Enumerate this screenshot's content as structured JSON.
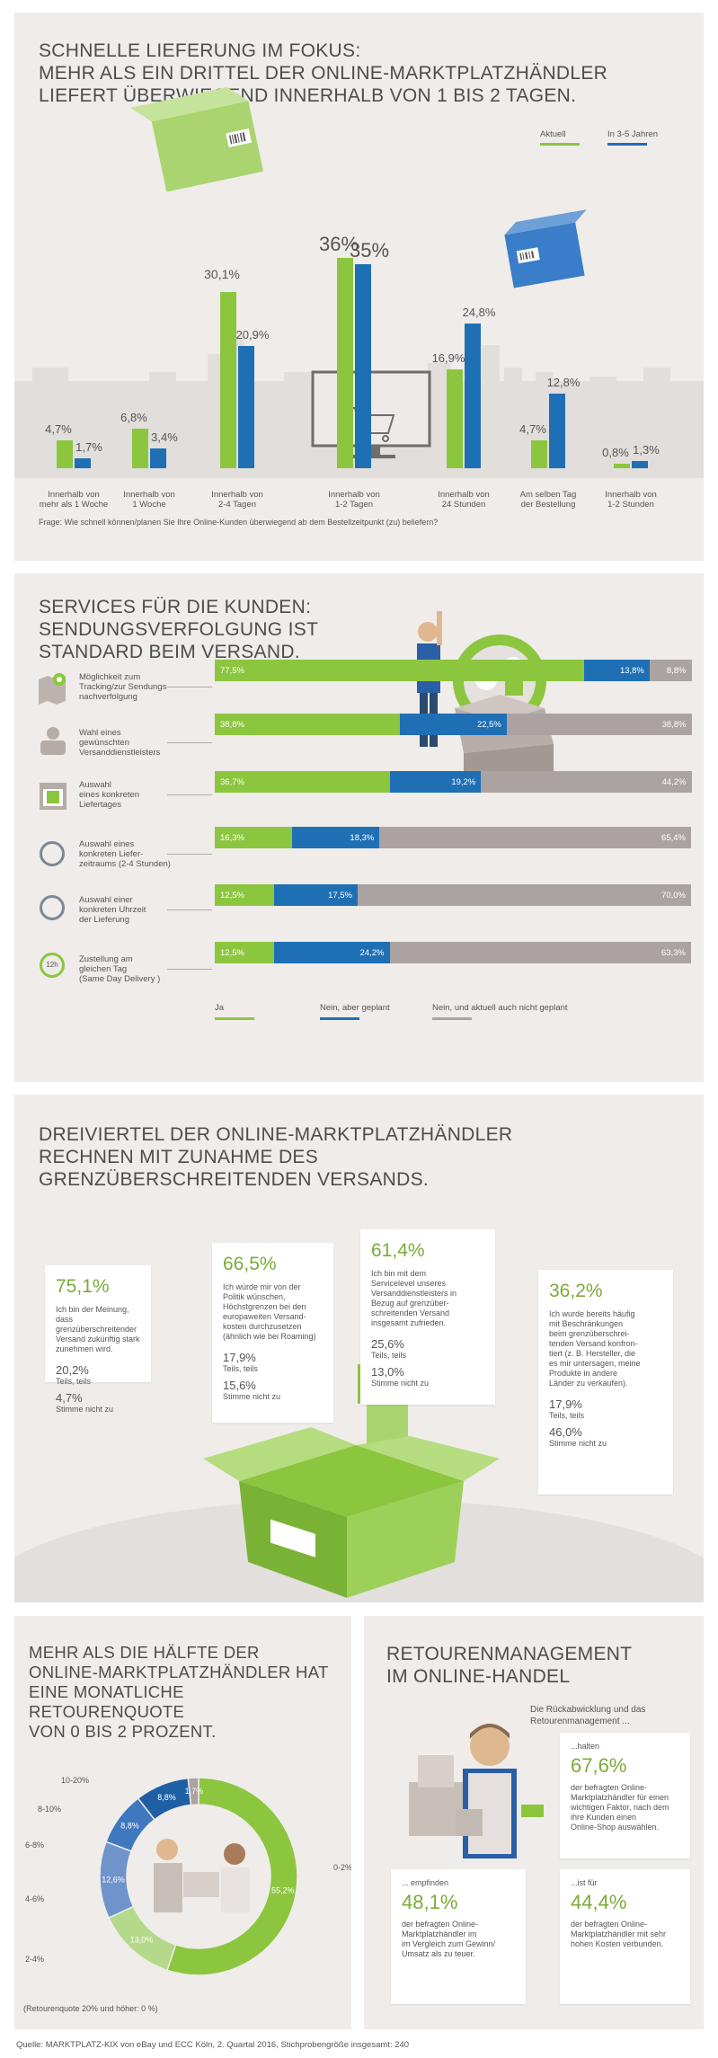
{
  "section1": {
    "title_lines": [
      "SCHNELLE LIEFERUNG IM FOKUS:",
      "MEHR ALS EIN DRITTEL DER ONLINE-MARKTPLATZHÄNDLER",
      "LIEFERT ÜBERWIEGEND INNERHALB VON 1 BIS 2 TAGEN."
    ],
    "question": "Frage: Wie schnell können/planen Sie Ihre Online-Kunden überwiegend ab dem Bestellzeitpunkt (zu) beliefern?"
  },
  "chart_data": [
    {
      "type": "bar",
      "categories": [
        "Innerhalb von mehr als 1 Woche",
        "Innerhalb von 1 Woche",
        "Innerhalb von 2-4 Tagen",
        "Innerhalb von 1-2 Tagen",
        "Innerhalb von 24 Stunden",
        "Am selben Tag der Bestellung",
        "Innerhalb von 1-2 Stunden"
      ],
      "category_lines": [
        [
          "Innerhalb von",
          "mehr als 1 Woche"
        ],
        [
          "Innerhalb von",
          "1 Woche"
        ],
        [
          "Innerhalb von",
          "2-4 Tagen"
        ],
        [
          "Innerhalb von",
          "1-2 Tagen"
        ],
        [
          "Innerhalb von",
          "24 Stunden"
        ],
        [
          "Am selben Tag",
          "der Bestellung"
        ],
        [
          "Innerhalb von",
          "1-2  Stunden"
        ]
      ],
      "series": [
        {
          "name": "Aktuell",
          "color": "#8cc63f",
          "values": [
            4.7,
            6.8,
            30.1,
            36,
            16.9,
            4.7,
            0.8
          ],
          "labels": [
            "4,7%",
            "6,8%",
            "30,1%",
            "36%",
            "16,9%",
            "4,7%",
            "0,8%"
          ]
        },
        {
          "name": "In 3-5 Jahren",
          "color": "#1f6fb5",
          "values": [
            1.7,
            3.4,
            20.9,
            35,
            24.8,
            12.8,
            1.3
          ],
          "labels": [
            "1,7%",
            "3,4%",
            "20,9%",
            "35%",
            "24,8%",
            "12,8%",
            "1,3%"
          ]
        }
      ],
      "ylim": [
        0,
        40
      ]
    },
    {
      "type": "bar",
      "orientation": "horizontal-stacked",
      "categories": [
        "Möglichkeit zum Tracking/zur Sendungsnachverfolgung",
        "Wahl eines gewünschten Versanddienstleisters",
        "Auswahl eines konkreten Liefertages",
        "Auswahl eines konkreten Lieferzeitraums (2-4 Stunden)",
        "Auswahl einer konkreten Uhrzeit der Lieferung",
        "Zustellung am gleichen Tag (Same Day Delivery )"
      ],
      "category_lines": [
        [
          "Möglichkeit zum",
          "Tracking/zur Sendungs-",
          "nachverfolgung"
        ],
        [
          "Wahl eines",
          "gewünschten",
          "Versanddienstleisters"
        ],
        [
          "Auswahl",
          "eines konkreten",
          "Liefertages"
        ],
        [
          "Auswahl eines",
          "konkreten Liefer-",
          "zeitraums (2-4 Stunden)"
        ],
        [
          "Auswahl einer",
          "konkreten Uhrzeit",
          "der Lieferung"
        ],
        [
          "Zustellung am",
          "gleichen Tag",
          "(Same Day Delivery )"
        ]
      ],
      "series": [
        {
          "name": "Ja",
          "color": "#8cc63f",
          "values": [
            77.5,
            38.8,
            36.7,
            16.3,
            12.5,
            12.5
          ],
          "labels": [
            "77,5%",
            "38,8%",
            "36,7%",
            "16,3%",
            "12,5%",
            "12,5%"
          ]
        },
        {
          "name": "Nein, aber geplant",
          "color": "#1f6fb5",
          "values": [
            13.8,
            22.5,
            19.2,
            18.3,
            17.5,
            24.2
          ],
          "labels": [
            "13,8%",
            "22,5%",
            "19,2%",
            "18,3%",
            "17,5%",
            "24,2%"
          ]
        },
        {
          "name": "Nein, und aktuell auch nicht geplant",
          "color": "#aba3a1",
          "values": [
            8.8,
            38.8,
            44.2,
            65.4,
            70.0,
            63.3
          ],
          "labels": [
            "8,8%",
            "38,8%",
            "44,2%",
            "65,4%",
            "70,0%",
            "63,3%"
          ]
        }
      ],
      "xlim": [
        0,
        100
      ]
    },
    {
      "type": "pie",
      "categories": [
        "0-2%",
        "2-4%",
        "4-6%",
        "6-8%",
        "8-10%",
        "10-20%"
      ],
      "values": [
        55.2,
        13.0,
        12.6,
        8.8,
        8.8,
        1.7
      ],
      "labels": [
        "55,2%",
        "13,0%",
        "12,6%",
        "8,8%",
        "8,8%",
        "1,7%"
      ],
      "colors": [
        "#8cc63f",
        "#b5d98a",
        "#6f94cc",
        "#3f78bf",
        "#1f5fa3",
        "#aba3a1"
      ],
      "note": "(Retourenquote 20% und höher: 0 %)"
    }
  ],
  "legend1": {
    "current": "Aktuell",
    "future": "In 3-5 Jahren"
  },
  "section2": {
    "title_lines": [
      "SERVICES FÜR DIE KUNDEN:",
      "SENDUNGSVERFOLGUNG IST",
      "STANDARD BEIM VERSAND."
    ],
    "clock_label": "12h"
  },
  "section3": {
    "title_lines": [
      "DREIVIERTEL DER ONLINE-MARKTPLATZHÄNDLER",
      "RECHNEN MIT ZUNAHME DES",
      "GRENZÜBERSCHREITENDEN VERSANDS."
    ],
    "cards": [
      {
        "big": "75,1%",
        "text_lines": [
          "Ich bin der Meinung, dass",
          "grenzüberschreitender",
          "Versand zukünftig stark",
          "zunehmen wird."
        ],
        "mid": "20,2%",
        "mid_label": "Teils, teils",
        "low": "4,7%",
        "low_label": "Stimme nicht zu"
      },
      {
        "big": "66,5%",
        "text_lines": [
          "Ich würde mir von der",
          "Politik wünschen,",
          "Höchstgrenzen bei den",
          "europaweiten Versand-",
          "kosten durchzusetzen",
          "(ähnlich wie bei Roaming)"
        ],
        "mid": "17,9%",
        "mid_label": "Teils, teils",
        "low": "15,6%",
        "low_label": "Stimme nicht zu"
      },
      {
        "big": "61,4%",
        "text_lines": [
          "Ich bin mit dem",
          "Servicelevel unseres",
          "Versanddienstleisters in",
          "Bezug auf grenzüber-",
          "schreitenden Versand",
          "insgesamt zufrieden."
        ],
        "mid": "25,6%",
        "mid_label": "Teils, teils",
        "low": "13,0%",
        "low_label": "Stimme nicht zu"
      },
      {
        "big": "36,2%",
        "text_lines": [
          "Ich wurde bereits häufig",
          "mit Beschränkungen",
          "beim grenzüberschrei-",
          "tenden Versand konfron-",
          "tiert (z. B. Hersteller, die",
          "es mir untersagen, meine",
          "Produkte in andere",
          "Länder zu verkaufen)."
        ],
        "mid": "17,9%",
        "mid_label": "Teils, teils",
        "low": "46,0%",
        "low_label": "Stimme nicht zu"
      }
    ]
  },
  "section4": {
    "title_lines": [
      "MEHR ALS DIE HÄLFTE DER",
      "ONLINE-MARKTPLATZHÄNDLER HAT",
      "EINE MONATLICHE RETOURENQUOTE",
      "VON 0 BIS 2 PROZENT."
    ]
  },
  "section5": {
    "title_lines": [
      "RETOURENMANAGEMENT",
      "IM ONLINE-HANDEL"
    ],
    "intro_lines": [
      "Die Rückabwicklung und das",
      "Retourenmanagement ..."
    ],
    "cards": [
      {
        "pre": "...halten",
        "big": "67,6%",
        "text_lines": [
          "der befragten Online-",
          "Marktplatzhändler für einen",
          "wichtigen Faktor, nach dem",
          "ihre Kunden einen",
          "Online-Shop auswählen."
        ]
      },
      {
        "pre": "... empfinden",
        "big": "48,1%",
        "text_lines": [
          "der befragten Online-",
          "Marktplatzhändler im",
          "im Vergleich zum Gewinn/",
          "Umsatz als zu teuer."
        ]
      },
      {
        "pre": "...ist für",
        "big": "44,4%",
        "text_lines": [
          "der befragten Online-",
          "Marktplatzhändler mit sehr",
          "hohen Kosten verbunden."
        ]
      }
    ]
  },
  "footer": "Quelle: MARKTPLATZ-KIX von eBay und ECC Köln, 2. Quartal 2016, Stichprobengröße insgesamt: 240",
  "colors": {
    "green": "#8cc63f",
    "blue": "#1f6fb5",
    "grey": "#aba3a1",
    "panel": "#efecea"
  }
}
